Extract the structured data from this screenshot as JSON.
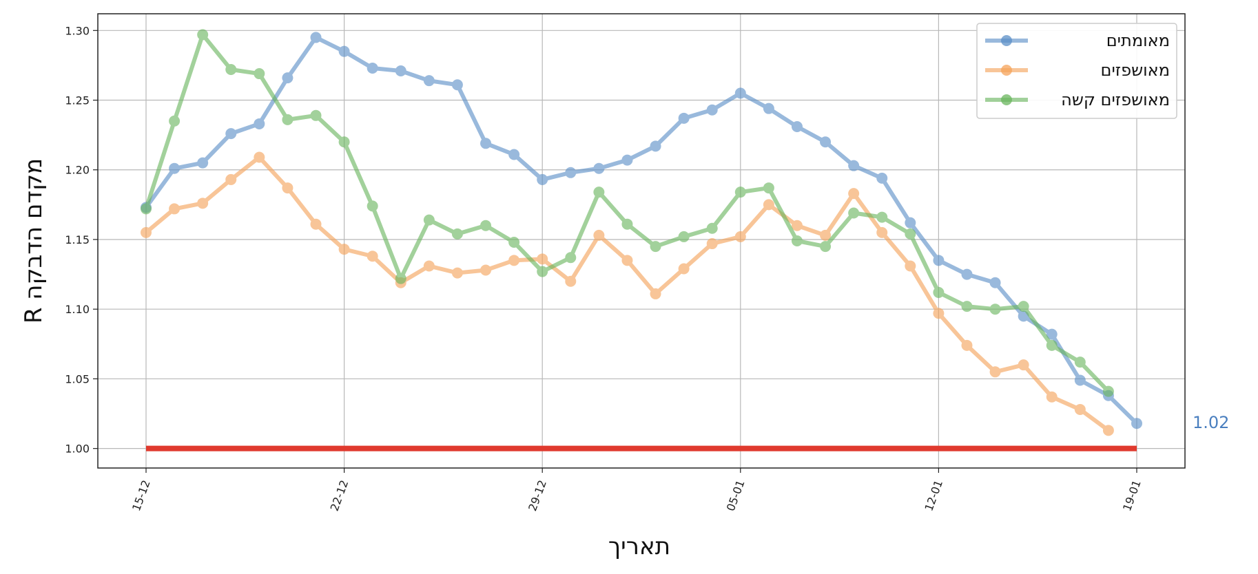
{
  "chart_data": {
    "type": "line",
    "ylabel": "R מקדם הדבקה",
    "xlabel": "תאריך",
    "ylim": [
      0.986,
      1.312
    ],
    "y_ticks": [
      1.0,
      1.05,
      1.1,
      1.15,
      1.2,
      1.25,
      1.3
    ],
    "y_tick_labels": [
      "1.00",
      "1.05",
      "1.10",
      "1.15",
      "1.20",
      "1.25",
      "1.30"
    ],
    "x_dates": [
      "2020-12-15",
      "2020-12-16",
      "2020-12-17",
      "2020-12-18",
      "2020-12-19",
      "2020-12-20",
      "2020-12-21",
      "2020-12-22",
      "2020-12-23",
      "2020-12-24",
      "2020-12-25",
      "2020-12-26",
      "2020-12-27",
      "2020-12-28",
      "2020-12-29",
      "2020-12-30",
      "2020-12-31",
      "2021-01-01",
      "2021-01-02",
      "2021-01-03",
      "2021-01-04",
      "2021-01-05",
      "2021-01-06",
      "2021-01-07",
      "2021-01-08",
      "2021-01-09",
      "2021-01-10",
      "2021-01-11",
      "2021-01-12",
      "2021-01-13",
      "2021-01-14",
      "2021-01-15",
      "2021-01-16",
      "2021-01-17",
      "2021-01-18",
      "2021-01-19"
    ],
    "x_ticks": [
      {
        "date": "2020-12-15",
        "label": "15-12"
      },
      {
        "date": "2020-12-22",
        "label": "22-12"
      },
      {
        "date": "2020-12-29",
        "label": "29-12"
      },
      {
        "date": "2021-01-05",
        "label": "05-01"
      },
      {
        "date": "2021-01-12",
        "label": "12-01"
      },
      {
        "date": "2021-01-19",
        "label": "19-01"
      }
    ],
    "grid": true,
    "legend_position": "top-right",
    "series": [
      {
        "name": "מאומתים",
        "color": "#5b8fc7",
        "values": [
          1.173,
          1.201,
          1.205,
          1.226,
          1.233,
          1.266,
          1.295,
          1.285,
          1.273,
          1.271,
          1.264,
          1.261,
          1.219,
          1.211,
          1.193,
          1.198,
          1.201,
          1.207,
          1.217,
          1.237,
          1.243,
          1.255,
          1.244,
          1.231,
          1.22,
          1.203,
          1.194,
          1.162,
          1.135,
          1.125,
          1.119,
          1.095,
          1.082,
          1.049,
          1.038,
          1.018
        ]
      },
      {
        "name": "מאושפזים",
        "color": "#f5a35a",
        "values": [
          1.155,
          1.172,
          1.176,
          1.193,
          1.209,
          1.187,
          1.161,
          1.143,
          1.138,
          1.119,
          1.131,
          1.126,
          1.128,
          1.135,
          1.136,
          1.12,
          1.153,
          1.135,
          1.111,
          1.129,
          1.147,
          1.152,
          1.175,
          1.16,
          1.153,
          1.183,
          1.155,
          1.131,
          1.097,
          1.074,
          1.055,
          1.06,
          1.037,
          1.028,
          1.013,
          null
        ]
      },
      {
        "name": "מאושפזים קשה",
        "color": "#6ab55e",
        "values": [
          1.172,
          1.235,
          1.297,
          1.272,
          1.269,
          1.236,
          1.239,
          1.22,
          1.174,
          1.122,
          1.164,
          1.154,
          1.16,
          1.148,
          1.127,
          1.137,
          1.184,
          1.161,
          1.145,
          1.152,
          1.158,
          1.184,
          1.187,
          1.149,
          1.145,
          1.169,
          1.166,
          1.154,
          1.112,
          1.102,
          1.1,
          1.102,
          1.074,
          1.062,
          1.041,
          null
        ]
      }
    ],
    "reference_line": {
      "value": 1.0,
      "color": "#e03a2e"
    },
    "end_annotation": {
      "text": "1.02",
      "color": "#4a7fbf"
    }
  }
}
